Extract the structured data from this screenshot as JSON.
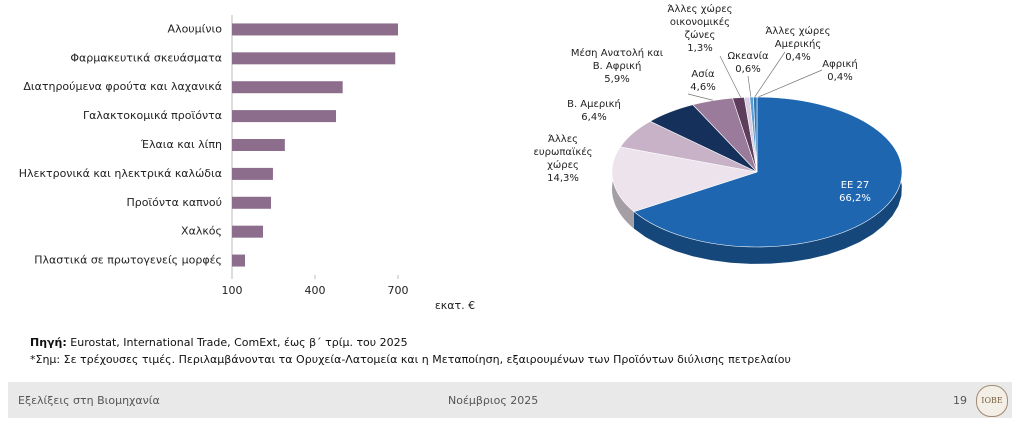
{
  "chart_data": [
    {
      "type": "bar",
      "orientation": "horizontal",
      "categories": [
        "Αλουμίνιο",
        "Φαρμακευτικά σκευάσματα",
        "Διατηρούμενα φρούτα και λαχανικά",
        "Γαλακτοκομικά προϊόντα",
        "Έλαια και λίπη",
        "Ηλεκτρονικά και ηλεκτρικά καλώδια",
        "Προϊόντα καπνού",
        "Χαλκός",
        "Πλαστικά σε πρωτογενείς μορφές"
      ],
      "values": [
        700,
        690,
        500,
        476,
        291,
        248,
        241,
        212,
        147
      ],
      "color": "#8c6d8c",
      "xlim": [
        100,
        700
      ],
      "xticks": [
        100,
        400,
        700
      ],
      "x_label": "εκατ. €"
    },
    {
      "type": "pie",
      "categories": [
        "ΕΕ 27",
        "Άλλες ευρωπαϊκές χώρες",
        "Β. Αμερική",
        "Μέση Ανατολή και Β. Αφρική",
        "Ασία",
        "Άλλες χώρες οικονομικές ζώνες",
        "Ωκεανία",
        "Άλλες χώρες Αμερικής",
        "Αφρική"
      ],
      "values": [
        66.2,
        14.3,
        6.4,
        5.9,
        4.6,
        1.3,
        0.6,
        0.4,
        0.4
      ],
      "value_labels": [
        "66,2%",
        "14,3%",
        "6,4%",
        "5,9%",
        "4,6%",
        "1,3%",
        "0,6%",
        "0,4%",
        "0,4%"
      ],
      "colors": [
        "#1f66b0",
        "#ece3ec",
        "#c8b2c8",
        "#15305a",
        "#9b7b9b",
        "#5c3d5c",
        "#d9cfe0",
        "#5b9bd5",
        "#2e75b6"
      ]
    }
  ],
  "source": {
    "label": "Πηγή:",
    "text": "Eurostat, International Trade, ComExt, έως β΄ τρίμ. του 2025"
  },
  "note": "*Σημ: Σε τρέχουσες τιμές. Περιλαμβάνονται τα Ορυχεία-Λατομεία και η Μεταποίηση, εξαιρουμένων των Προϊόντων διύλισης πετρελαίου",
  "footer": {
    "left": "Εξελίξεις στη Βιομηχανία",
    "center": "Νοέμβριος 2025",
    "page": "19",
    "logo": "IOBE"
  }
}
